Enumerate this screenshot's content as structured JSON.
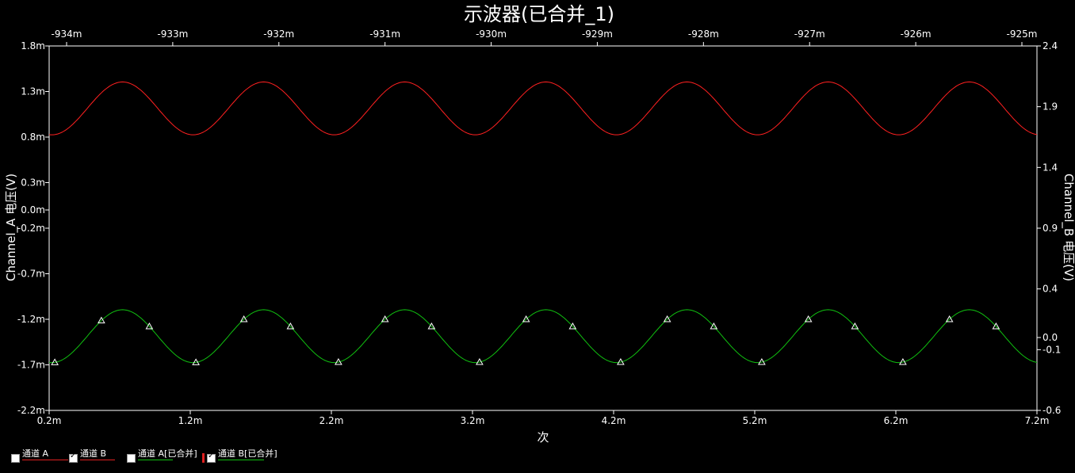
{
  "chart_data": {
    "type": "line",
    "title": "示波器(已合并_1)",
    "xlabel": "次",
    "ylabel_left": "Channel_A 电压(V)",
    "ylabel_right": "Channel_B 电压(V)",
    "x_bottom_ticks": [
      "0.2m",
      "1.2m",
      "2.2m",
      "3.2m",
      "4.2m",
      "5.2m",
      "6.2m",
      "7.2m"
    ],
    "x_top_ticks": [
      "-934m",
      "-933m",
      "-932m",
      "-931m",
      "-930m",
      "-929m",
      "-928m",
      "-927m",
      "-926m",
      "-925m"
    ],
    "y_left_ticks": [
      "1.8m",
      "1.3m",
      "0.8m",
      "0.3m",
      "0.0m",
      "-0.2m",
      "-0.7m",
      "-1.2m",
      "-1.7m",
      "-2.2m"
    ],
    "y_left_tick_values": [
      1.8,
      1.3,
      0.8,
      0.3,
      0.0,
      -0.2,
      -0.7,
      -1.2,
      -1.7,
      -2.2
    ],
    "y_right_ticks": [
      "2.4",
      "1.9",
      "1.4",
      "0.9",
      "0.4",
      "0.0",
      "-0.1",
      "-0.6"
    ],
    "y_right_tick_values": [
      2.4,
      1.9,
      1.4,
      0.9,
      0.4,
      0.0,
      -0.1,
      -0.6
    ],
    "xlim_bottom": [
      0.2,
      7.2
    ],
    "ylim_left": [
      -2.2,
      1.8
    ],
    "ylim_right": [
      -0.6,
      2.4
    ],
    "grid": false,
    "series": [
      {
        "axis": "left",
        "color": "#ff2020",
        "shape": "sine",
        "period": 1.0,
        "center": 1.115,
        "amplitude": 0.29,
        "peak_x": 0.72,
        "x_start": 0.2,
        "x_end": 7.2
      },
      {
        "axis": "left",
        "color": "#10c010",
        "shape": "sine",
        "period": 1.0,
        "center": -1.385,
        "amplitude": 0.29,
        "peak_x": 0.72,
        "x_start": 0.2,
        "x_end": 7.2,
        "markers": [
          0.24,
          0.57,
          0.91,
          1.24,
          1.58,
          1.91,
          2.25,
          2.58,
          2.91,
          3.25,
          3.58,
          3.91,
          4.25,
          4.58,
          4.91,
          5.25,
          5.58,
          5.91,
          6.25,
          6.58,
          6.91
        ]
      }
    ]
  },
  "legend": {
    "items": [
      {
        "label": "通道 A",
        "checked": false,
        "line_color": "#e02020"
      },
      {
        "label": "通道 B",
        "checked": true,
        "line_color": "#e02020"
      },
      {
        "label": "通道 A[已合并]",
        "checked": false,
        "line_color": "#10c010"
      },
      {
        "label": "通道 B[已合并]",
        "checked": true,
        "line_color": "#10c010"
      }
    ]
  }
}
